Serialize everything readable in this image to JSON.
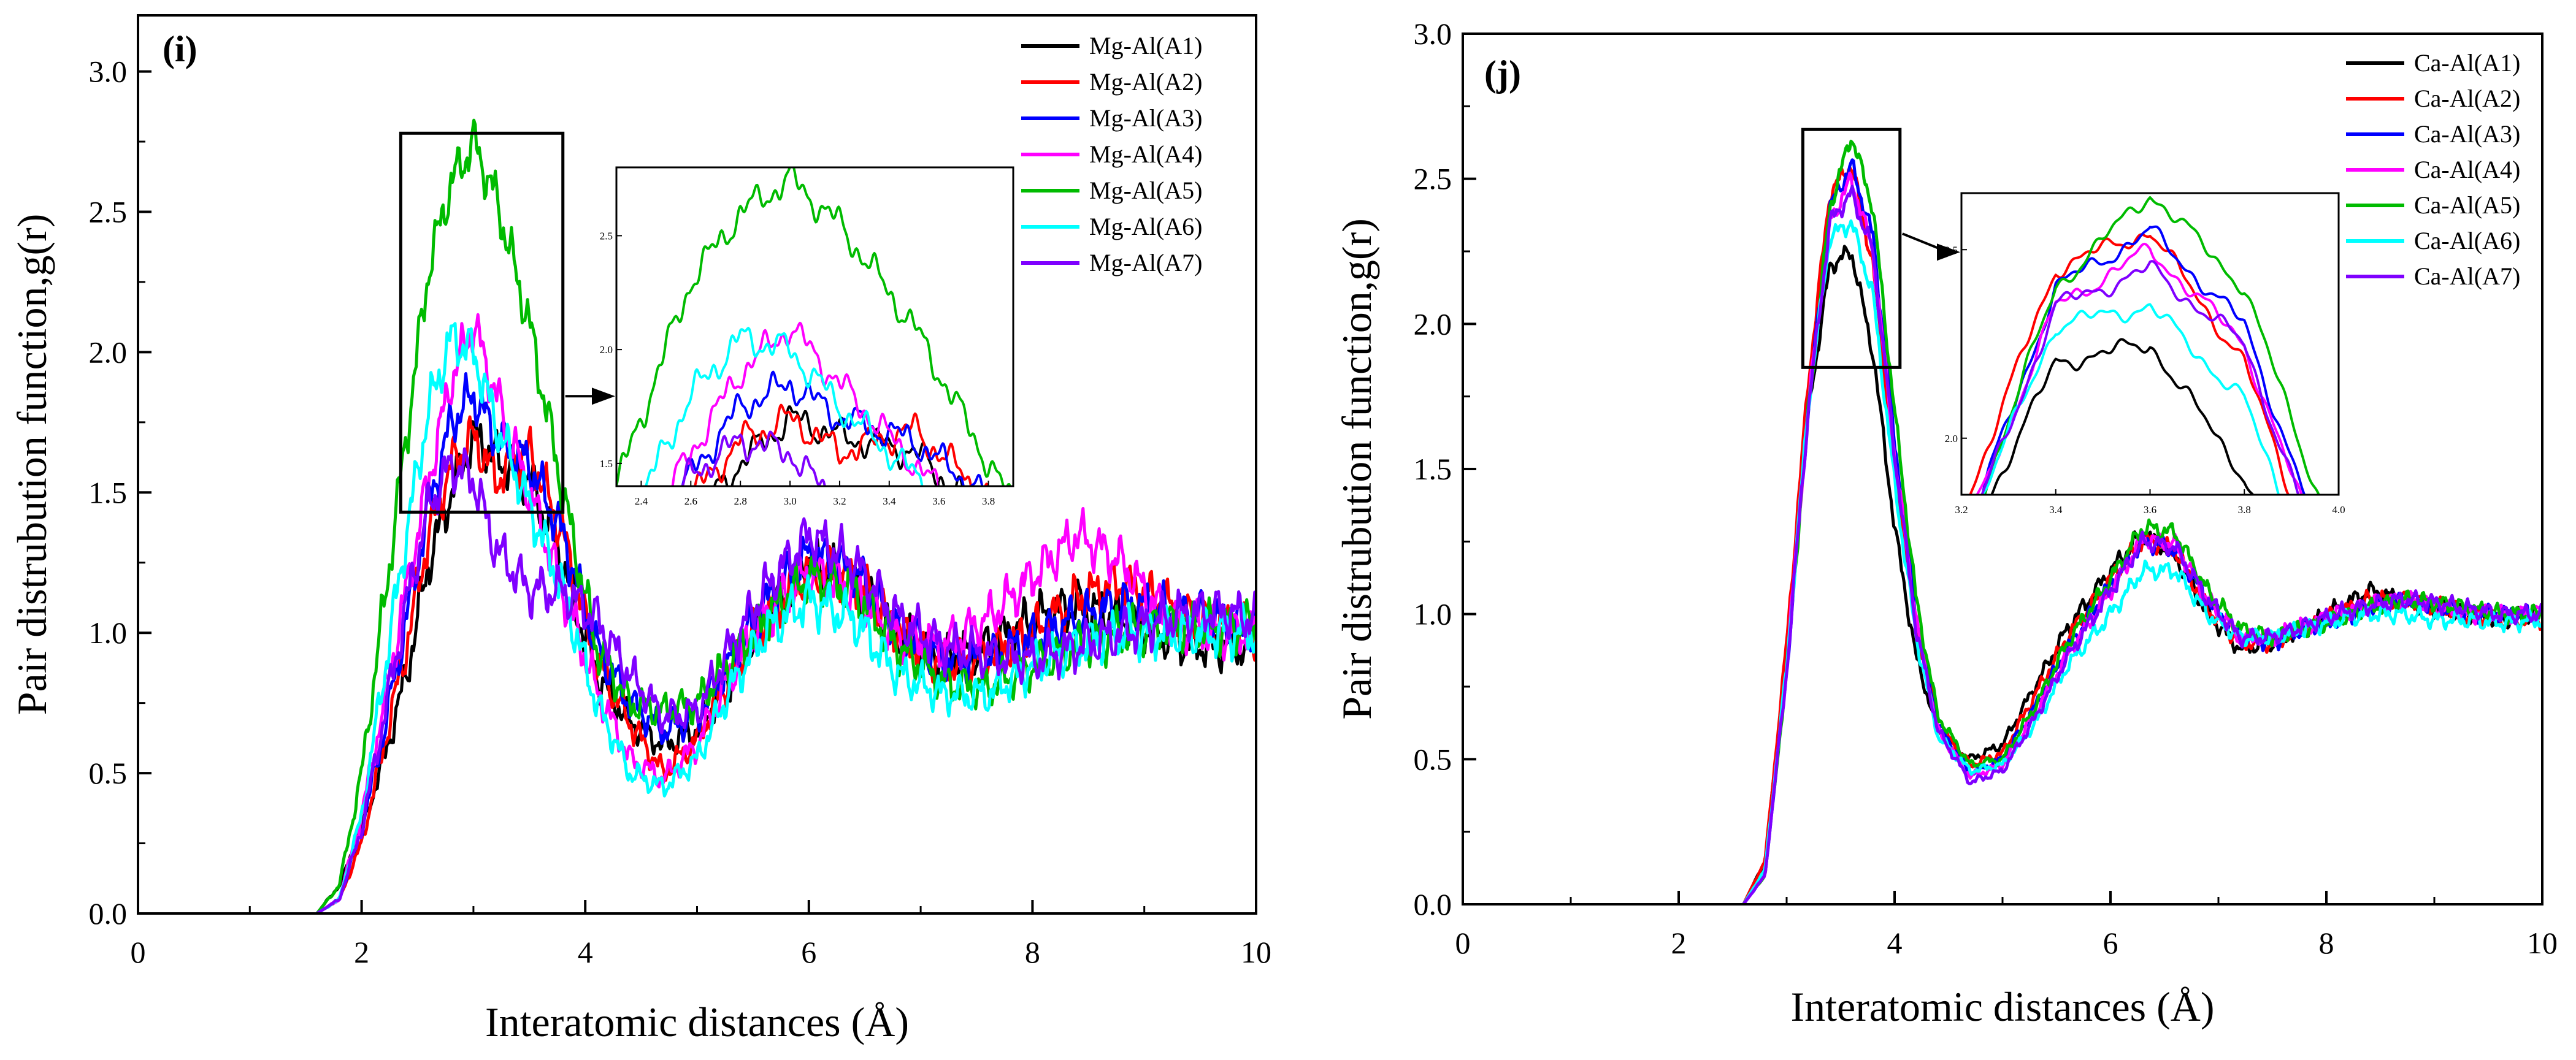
{
  "figure": {
    "colors": {
      "A1": "#000000",
      "A2": "#ff0000",
      "A3": "#0000ff",
      "A4": "#ff00ff",
      "A5": "#00bb00",
      "A6": "#00ffff",
      "A7": "#7f00ff"
    }
  },
  "chart_data": [
    {
      "type": "line",
      "panel_label": "(i)",
      "xlabel": "Interatomic distances (Å)",
      "ylabel": "Pair distrubution function,g(r)",
      "xlim": [
        0,
        10
      ],
      "ylim": [
        0,
        3.2
      ],
      "xticks": [
        0,
        2,
        4,
        6,
        8,
        10
      ],
      "yticks": [
        0.0,
        0.5,
        1.0,
        1.5,
        2.0,
        2.5,
        3.0
      ],
      "xtick_labels": [
        "0",
        "2",
        "4",
        "6",
        "8",
        "10"
      ],
      "ytick_labels": [
        "0.0",
        "0.5",
        "1.0",
        "1.5",
        "2.0",
        "2.5",
        "3.0"
      ],
      "legend_position": "top-right",
      "series": [
        {
          "name": "Mg-Al(A1)",
          "color_key": "A1",
          "x": [
            1.6,
            1.8,
            2.0,
            2.2,
            2.4,
            2.6,
            2.8,
            3.0,
            3.2,
            3.5,
            3.8,
            4.1,
            4.4,
            4.7,
            5.0,
            5.3,
            5.6,
            6.0,
            6.4,
            6.8,
            7.2,
            7.6,
            8.0,
            8.4,
            8.8,
            9.2,
            9.6,
            10.0
          ],
          "y": [
            0.0,
            0.1,
            0.3,
            0.55,
            0.85,
            1.25,
            1.5,
            1.7,
            1.62,
            1.55,
            1.25,
            0.85,
            0.68,
            0.6,
            0.65,
            0.85,
            1.05,
            1.25,
            1.18,
            1.0,
            0.9,
            0.95,
            1.05,
            1.1,
            1.05,
            0.98,
            0.95,
            0.95
          ]
        },
        {
          "name": "Mg-Al(A2)",
          "color_key": "A2",
          "x": [
            1.6,
            1.8,
            2.0,
            2.2,
            2.4,
            2.6,
            2.8,
            3.0,
            3.2,
            3.5,
            3.8,
            4.1,
            4.4,
            4.7,
            5.0,
            5.3,
            5.6,
            6.0,
            6.4,
            6.8,
            7.2,
            7.6,
            8.0,
            8.4,
            8.8,
            9.2,
            9.6,
            10.0
          ],
          "y": [
            0.0,
            0.05,
            0.25,
            0.6,
            0.95,
            1.35,
            1.6,
            1.7,
            1.55,
            1.65,
            1.35,
            0.9,
            0.68,
            0.5,
            0.62,
            0.85,
            1.05,
            1.22,
            1.2,
            1.0,
            0.88,
            0.92,
            1.0,
            1.12,
            1.18,
            1.1,
            1.02,
            1.0
          ]
        },
        {
          "name": "Mg-Al(A3)",
          "color_key": "A3",
          "x": [
            1.6,
            1.8,
            2.0,
            2.2,
            2.4,
            2.6,
            2.8,
            3.0,
            3.2,
            3.5,
            3.8,
            4.1,
            4.4,
            4.7,
            5.0,
            5.3,
            5.6,
            6.0,
            6.4,
            6.8,
            7.2,
            7.6,
            8.0,
            8.4,
            8.8,
            9.2,
            9.6,
            10.0
          ],
          "y": [
            0.0,
            0.05,
            0.3,
            0.65,
            1.05,
            1.45,
            1.75,
            1.85,
            1.7,
            1.6,
            1.35,
            0.95,
            0.75,
            0.65,
            0.7,
            0.9,
            1.1,
            1.28,
            1.22,
            1.02,
            0.9,
            0.9,
            0.98,
            1.05,
            1.1,
            1.08,
            1.05,
            1.02
          ]
        },
        {
          "name": "Mg-Al(A4)",
          "color_key": "A4",
          "x": [
            1.6,
            1.8,
            2.0,
            2.2,
            2.4,
            2.6,
            2.8,
            3.0,
            3.2,
            3.5,
            3.8,
            4.1,
            4.4,
            4.7,
            5.0,
            5.3,
            5.6,
            6.0,
            6.4,
            6.8,
            7.2,
            7.6,
            8.0,
            8.4,
            8.8,
            9.2,
            9.6,
            10.0
          ],
          "y": [
            0.0,
            0.05,
            0.35,
            0.75,
            1.15,
            1.55,
            1.9,
            2.1,
            1.85,
            1.5,
            1.15,
            0.8,
            0.55,
            0.48,
            0.6,
            0.85,
            1.05,
            1.22,
            1.15,
            0.98,
            0.95,
            1.05,
            1.2,
            1.35,
            1.25,
            1.05,
            1.0,
            1.0
          ]
        },
        {
          "name": "Mg-Al(A5)",
          "color_key": "A5",
          "x": [
            1.6,
            1.8,
            2.0,
            2.2,
            2.4,
            2.6,
            2.8,
            3.0,
            3.2,
            3.5,
            3.8,
            4.1,
            4.4,
            4.7,
            5.0,
            5.3,
            5.6,
            6.0,
            6.4,
            6.8,
            7.2,
            7.6,
            8.0,
            8.4,
            8.8,
            9.2,
            9.6,
            10.0
          ],
          "y": [
            0.0,
            0.1,
            0.5,
            1.1,
            1.7,
            2.3,
            2.6,
            2.75,
            2.55,
            2.1,
            1.5,
            0.95,
            0.75,
            0.72,
            0.75,
            0.9,
            1.05,
            1.2,
            1.15,
            0.95,
            0.82,
            0.8,
            0.88,
            0.95,
            1.0,
            1.02,
            1.02,
            1.02
          ]
        },
        {
          "name": "Mg-Al(A6)",
          "color_key": "A6",
          "x": [
            1.6,
            1.8,
            2.0,
            2.2,
            2.4,
            2.6,
            2.8,
            3.0,
            3.2,
            3.5,
            3.8,
            4.1,
            4.4,
            4.7,
            5.0,
            5.3,
            5.6,
            6.0,
            6.4,
            6.8,
            7.2,
            7.6,
            8.0,
            8.4,
            8.8,
            9.2,
            9.6,
            10.0
          ],
          "y": [
            0.0,
            0.05,
            0.35,
            0.85,
            1.35,
            1.8,
            2.05,
            2.0,
            1.75,
            1.45,
            1.15,
            0.75,
            0.5,
            0.45,
            0.55,
            0.8,
            1.0,
            1.12,
            1.05,
            0.85,
            0.78,
            0.78,
            0.88,
            0.95,
            1.0,
            1.0,
            1.0,
            1.0
          ]
        },
        {
          "name": "Mg-Al(A7)",
          "color_key": "A7",
          "x": [
            1.6,
            1.8,
            2.0,
            2.2,
            2.4,
            2.6,
            2.8,
            3.0,
            3.2,
            3.5,
            3.8,
            4.1,
            4.4,
            4.7,
            5.0,
            5.3,
            5.6,
            6.0,
            6.4,
            6.8,
            7.2,
            7.6,
            8.0,
            8.4,
            8.8,
            9.2,
            9.6,
            10.0
          ],
          "y": [
            0.0,
            0.05,
            0.3,
            0.7,
            1.1,
            1.45,
            1.6,
            1.55,
            1.3,
            1.15,
            1.15,
            1.05,
            0.85,
            0.7,
            0.72,
            0.95,
            1.15,
            1.35,
            1.25,
            1.05,
            0.95,
            0.92,
            0.9,
            0.95,
            1.0,
            1.05,
            1.08,
            1.05
          ]
        }
      ],
      "inset": {
        "xlim": [
          2.3,
          3.9
        ],
        "ylim": [
          1.4,
          2.8
        ],
        "xticks": [
          2.4,
          2.6,
          2.8,
          3.0,
          3.2,
          3.4,
          3.6,
          3.8
        ],
        "xtick_labels": [
          "2.4",
          "2.6",
          "2.8",
          "3.0",
          "3.2",
          "3.4",
          "3.6",
          "3.8"
        ],
        "yticks": [
          1.5,
          2.0,
          2.5
        ],
        "ytick_labels": [
          "1.5",
          "2.0",
          "2.5"
        ],
        "source_box": {
          "x": [
            2.35,
            3.8
          ],
          "y": [
            1.43,
            2.78
          ]
        }
      }
    },
    {
      "type": "line",
      "panel_label": "(j)",
      "xlabel": "Interatomic distances (Å)",
      "ylabel": "Pair distrubution function,g(r)",
      "xlim": [
        0,
        10
      ],
      "ylim": [
        0,
        3.0
      ],
      "xticks": [
        0,
        2,
        4,
        6,
        8,
        10
      ],
      "yticks": [
        0.0,
        0.5,
        1.0,
        1.5,
        2.0,
        2.5,
        3.0
      ],
      "xtick_labels": [
        "0",
        "2",
        "4",
        "6",
        "8",
        "10"
      ],
      "ytick_labels": [
        "0.0",
        "0.5",
        "1.0",
        "1.5",
        "2.0",
        "2.5",
        "3.0"
      ],
      "legend_position": "top-right",
      "series": [
        {
          "name": "Ca-Al(A1)",
          "color_key": "A1",
          "x": [
            2.6,
            2.8,
            3.0,
            3.2,
            3.4,
            3.6,
            3.8,
            4.0,
            4.2,
            4.4,
            4.7,
            5.0,
            5.3,
            5.6,
            6.0,
            6.3,
            6.6,
            6.9,
            7.2,
            7.5,
            7.8,
            8.1,
            8.4,
            8.7,
            9.0,
            9.3,
            9.6,
            10.0
          ],
          "y": [
            0.0,
            0.15,
            0.85,
            1.7,
            2.2,
            2.25,
            1.9,
            1.3,
            0.85,
            0.6,
            0.5,
            0.55,
            0.75,
            0.95,
            1.15,
            1.28,
            1.2,
            1.0,
            0.88,
            0.9,
            0.95,
            1.02,
            1.08,
            1.05,
            1.02,
            1.0,
            0.98,
            1.0
          ]
        },
        {
          "name": "Ca-Al(A2)",
          "color_key": "A2",
          "x": [
            2.6,
            2.8,
            3.0,
            3.2,
            3.4,
            3.6,
            3.8,
            4.0,
            4.2,
            4.4,
            4.7,
            5.0,
            5.3,
            5.6,
            6.0,
            6.3,
            6.6,
            6.9,
            7.2,
            7.5,
            7.8,
            8.1,
            8.4,
            8.7,
            9.0,
            9.3,
            9.6,
            10.0
          ],
          "y": [
            0.0,
            0.15,
            0.9,
            1.8,
            2.45,
            2.55,
            2.2,
            1.5,
            0.95,
            0.62,
            0.48,
            0.52,
            0.72,
            0.92,
            1.12,
            1.26,
            1.22,
            1.02,
            0.9,
            0.9,
            0.95,
            1.0,
            1.05,
            1.05,
            1.03,
            1.0,
            0.98,
            0.98
          ]
        },
        {
          "name": "Ca-Al(A3)",
          "color_key": "A3",
          "x": [
            2.6,
            2.8,
            3.0,
            3.2,
            3.4,
            3.6,
            3.8,
            4.0,
            4.2,
            4.4,
            4.7,
            5.0,
            5.3,
            5.6,
            6.0,
            6.3,
            6.6,
            6.9,
            7.2,
            7.5,
            7.8,
            8.1,
            8.4,
            8.7,
            9.0,
            9.3,
            9.6,
            10.0
          ],
          "y": [
            0.0,
            0.1,
            0.8,
            1.7,
            2.4,
            2.55,
            2.3,
            1.6,
            1.0,
            0.62,
            0.45,
            0.5,
            0.68,
            0.88,
            1.1,
            1.25,
            1.22,
            1.05,
            0.92,
            0.9,
            0.95,
            0.98,
            1.02,
            1.05,
            1.03,
            1.0,
            1.0,
            1.0
          ]
        },
        {
          "name": "Ca-Al(A4)",
          "color_key": "A4",
          "x": [
            2.6,
            2.8,
            3.0,
            3.2,
            3.4,
            3.6,
            3.8,
            4.0,
            4.2,
            4.4,
            4.7,
            5.0,
            5.3,
            5.6,
            6.0,
            6.3,
            6.6,
            6.9,
            7.2,
            7.5,
            7.8,
            8.1,
            8.4,
            8.7,
            9.0,
            9.3,
            9.6,
            10.0
          ],
          "y": [
            0.0,
            0.1,
            0.82,
            1.72,
            2.35,
            2.5,
            2.25,
            1.55,
            0.98,
            0.6,
            0.44,
            0.48,
            0.66,
            0.86,
            1.08,
            1.26,
            1.24,
            1.05,
            0.92,
            0.92,
            0.96,
            1.0,
            1.03,
            1.05,
            1.03,
            1.0,
            1.0,
            1.0
          ]
        },
        {
          "name": "Ca-Al(A5)",
          "color_key": "A5",
          "x": [
            2.6,
            2.8,
            3.0,
            3.2,
            3.4,
            3.6,
            3.8,
            4.0,
            4.2,
            4.4,
            4.7,
            5.0,
            5.3,
            5.6,
            6.0,
            6.3,
            6.6,
            6.9,
            7.2,
            7.5,
            7.8,
            8.1,
            8.4,
            8.7,
            9.0,
            9.3,
            9.6,
            10.0
          ],
          "y": [
            0.0,
            0.1,
            0.8,
            1.7,
            2.4,
            2.65,
            2.4,
            1.7,
            1.05,
            0.65,
            0.48,
            0.5,
            0.68,
            0.9,
            1.12,
            1.3,
            1.28,
            1.08,
            0.95,
            0.92,
            0.95,
            0.98,
            1.02,
            1.05,
            1.04,
            1.02,
            1.0,
            1.0
          ]
        },
        {
          "name": "Ca-Al(A6)",
          "color_key": "A6",
          "x": [
            2.6,
            2.8,
            3.0,
            3.2,
            3.4,
            3.6,
            3.8,
            4.0,
            4.2,
            4.4,
            4.7,
            5.0,
            5.3,
            5.6,
            6.0,
            6.3,
            6.6,
            6.9,
            7.2,
            7.5,
            7.8,
            8.1,
            8.4,
            8.7,
            9.0,
            9.3,
            9.6,
            10.0
          ],
          "y": [
            0.0,
            0.12,
            0.82,
            1.72,
            2.3,
            2.35,
            2.1,
            1.45,
            0.92,
            0.58,
            0.46,
            0.48,
            0.62,
            0.82,
            1.0,
            1.15,
            1.15,
            1.0,
            0.92,
            0.92,
            0.95,
            0.98,
            1.0,
            1.0,
            0.98,
            0.98,
            0.97,
            0.98
          ]
        },
        {
          "name": "Ca-Al(A7)",
          "color_key": "A7",
          "x": [
            2.6,
            2.8,
            3.0,
            3.2,
            3.4,
            3.6,
            3.8,
            4.0,
            4.2,
            4.4,
            4.7,
            5.0,
            5.3,
            5.6,
            6.0,
            6.3,
            6.6,
            6.9,
            7.2,
            7.5,
            7.8,
            8.1,
            8.4,
            8.7,
            9.0,
            9.3,
            9.6,
            10.0
          ],
          "y": [
            0.0,
            0.1,
            0.8,
            1.7,
            2.35,
            2.45,
            2.25,
            1.55,
            0.95,
            0.6,
            0.42,
            0.46,
            0.64,
            0.85,
            1.08,
            1.25,
            1.23,
            1.05,
            0.92,
            0.92,
            0.96,
            1.0,
            1.03,
            1.05,
            1.04,
            1.02,
            1.0,
            1.0
          ]
        }
      ],
      "inset": {
        "xlim": [
          3.2,
          4.0
        ],
        "ylim": [
          1.85,
          2.65
        ],
        "xticks": [
          3.2,
          3.4,
          3.6,
          3.8,
          4.0
        ],
        "xtick_labels": [
          "3.2",
          "3.4",
          "3.6",
          "3.8",
          "4.0"
        ],
        "yticks": [
          2.0,
          2.5
        ],
        "ytick_labels": [
          "2.0",
          "2.5"
        ],
        "source_box": {
          "x": [
            3.15,
            4.05
          ],
          "y": [
            1.85,
            2.67
          ]
        }
      }
    }
  ]
}
